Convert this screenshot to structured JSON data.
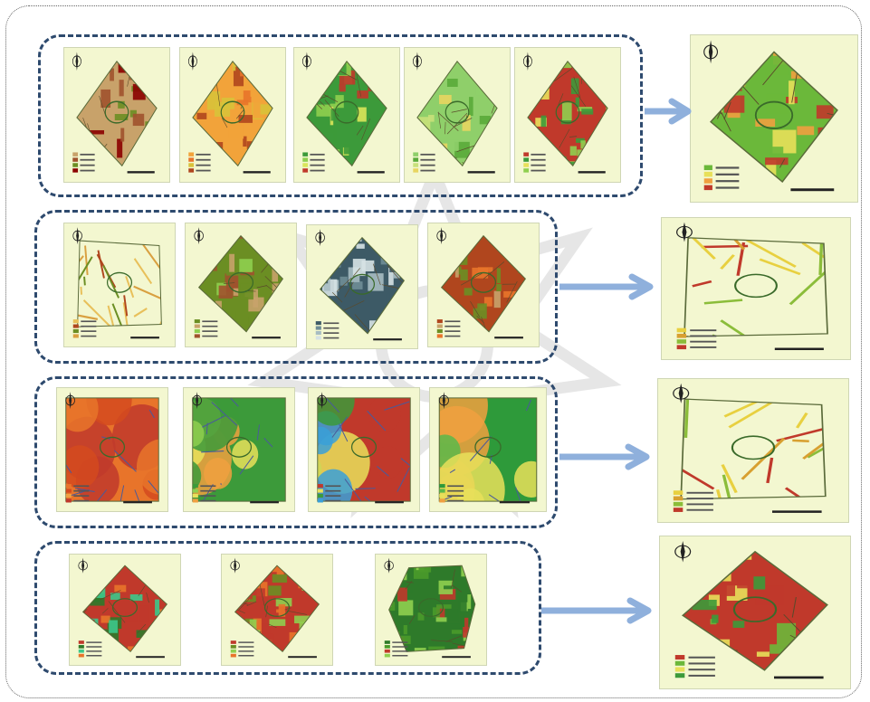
{
  "diagram": {
    "rows": [
      {
        "id": "row1",
        "inputs": [
          {
            "name": "map-1-1",
            "palette": [
              "#c8a26a",
              "#a0522d",
              "#6b8e23",
              "#8b0000"
            ],
            "shape": "diamond"
          },
          {
            "name": "map-1-2",
            "palette": [
              "#f2a33a",
              "#e8742a",
              "#d8c23a",
              "#b0461e"
            ],
            "shape": "diamond"
          },
          {
            "name": "map-1-3",
            "palette": [
              "#3c9a3a",
              "#8fcf4f",
              "#d9e55a",
              "#c0392b"
            ],
            "shape": "diamond"
          },
          {
            "name": "map-1-4",
            "palette": [
              "#8fcf6a",
              "#5aaa3a",
              "#c8e07a",
              "#e8d560"
            ],
            "shape": "diamond"
          },
          {
            "name": "map-1-5",
            "palette": [
              "#c0392b",
              "#3c9a3a",
              "#e8e05a",
              "#8fcf4f"
            ],
            "shape": "diamond"
          }
        ],
        "output": {
          "name": "result-map-1",
          "palette": [
            "#6bb83a",
            "#e8e05a",
            "#f0a040",
            "#c0392b"
          ],
          "shape": "diamond"
        }
      },
      {
        "id": "row2",
        "inputs": [
          {
            "name": "map-2-1",
            "palette": [
              "#e8c05a",
              "#b0461e",
              "#6b8e23",
              "#d9a040"
            ],
            "shape": "lines"
          },
          {
            "name": "map-2-2",
            "palette": [
              "#6b8e23",
              "#c8a26a",
              "#8fcf4f",
              "#a0522d"
            ],
            "shape": "diamond"
          },
          {
            "name": "map-2-3",
            "palette": [
              "#3d5a66",
              "#6f8d96",
              "#a7bcc2",
              "#d6e2e4"
            ],
            "shape": "diamond"
          },
          {
            "name": "map-2-4",
            "palette": [
              "#b0461e",
              "#c8a26a",
              "#6b8e23",
              "#e8742a"
            ],
            "shape": "diamond"
          }
        ],
        "output": {
          "name": "result-map-2",
          "palette": [
            "#e8d040",
            "#d8a030",
            "#8bbd3a",
            "#c0392b"
          ],
          "shape": "lines"
        }
      },
      {
        "id": "row3",
        "inputs": [
          {
            "name": "map-3-1",
            "palette": [
              "#e8742a",
              "#d44a1e",
              "#f0a040",
              "#c0392b"
            ],
            "shape": "square"
          },
          {
            "name": "map-3-2",
            "palette": [
              "#3c9a3a",
              "#8fcf4f",
              "#e8e05a",
              "#f0a040"
            ],
            "shape": "square"
          },
          {
            "name": "map-3-3",
            "palette": [
              "#c0392b",
              "#e8e05a",
              "#3c9a3a",
              "#3aa0d8"
            ],
            "shape": "square"
          },
          {
            "name": "map-3-4",
            "palette": [
              "#2e9a3a",
              "#5ab84a",
              "#e8e05a",
              "#f0a040"
            ],
            "shape": "square"
          }
        ],
        "output": {
          "name": "result-map-3",
          "palette": [
            "#e8d040",
            "#d8a030",
            "#8bbd3a",
            "#c0392b"
          ],
          "shape": "lines"
        }
      },
      {
        "id": "row4",
        "inputs": [
          {
            "name": "map-4-1",
            "palette": [
              "#c0392b",
              "#2e7a2a",
              "#3cc88a",
              "#e8742a"
            ],
            "shape": "diamond"
          },
          {
            "name": "map-4-2",
            "palette": [
              "#c0392b",
              "#6b8e23",
              "#8fcf4f",
              "#e8742a"
            ],
            "shape": "diamond"
          },
          {
            "name": "map-4-3",
            "palette": [
              "#2e7a2a",
              "#4a9a2a",
              "#c0392b",
              "#8fcf4f"
            ],
            "shape": "hexagon"
          }
        ],
        "output": {
          "name": "result-map-4",
          "palette": [
            "#c0392b",
            "#6bb83a",
            "#e8e05a",
            "#3c9a3a"
          ],
          "shape": "diamond"
        }
      }
    ],
    "colors": {
      "group_border": "#2e4a6e",
      "arrow": "#8fb0dc",
      "map_background": "#f3f7d0"
    }
  }
}
